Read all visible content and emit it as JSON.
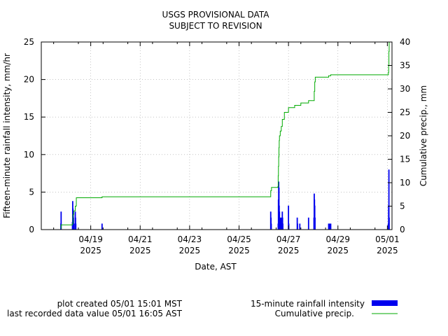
{
  "chart_data": {
    "type": "bar",
    "title": "USGS PROVISIONAL DATA",
    "subtitle": "SUBJECT TO REVISION",
    "xlabel": "Date, AST",
    "ylabel": "Fifteen-minute rainfall intensity, mm/hr",
    "y2label": "Cumulative precip., mm",
    "xlim": [
      "2025-04-17T12:00",
      "2025-05-01T16:30"
    ],
    "ylim": [
      0,
      25
    ],
    "y2lim": [
      0,
      40
    ],
    "yticks": [
      "0",
      "5",
      "10",
      "15",
      "20",
      "25"
    ],
    "y2ticks": [
      "0",
      "5",
      "10",
      "15",
      "20",
      "25",
      "30",
      "35",
      "40"
    ],
    "xticks": [
      {
        "date": "04/19",
        "year": "2025"
      },
      {
        "date": "04/21",
        "year": "2025"
      },
      {
        "date": "04/23",
        "year": "2025"
      },
      {
        "date": "04/25",
        "year": "2025"
      },
      {
        "date": "04/27",
        "year": "2025"
      },
      {
        "date": "04/29",
        "year": "2025"
      },
      {
        "date": "05/01",
        "year": "2025"
      }
    ],
    "grid": true,
    "legend_position": "bottom-right",
    "series": [
      {
        "name": "15-minute rainfall intensity",
        "color": "#0000ee",
        "style": "bars",
        "points": [
          [
            "2025-04-18T07:00",
            0.8
          ],
          [
            "2025-04-18T07:15",
            2.4
          ],
          [
            "2025-04-18T18:15",
            1.0
          ],
          [
            "2025-04-18T18:30",
            3.8
          ],
          [
            "2025-04-18T18:45",
            2.8
          ],
          [
            "2025-04-18T19:00",
            2.4
          ],
          [
            "2025-04-18T19:15",
            1.6
          ],
          [
            "2025-04-18T19:45",
            0.8
          ],
          [
            "2025-04-18T21:00",
            2.4
          ],
          [
            "2025-04-18T21:15",
            1.6
          ],
          [
            "2025-04-18T21:30",
            0.8
          ],
          [
            "2025-04-19T23:00",
            0.8
          ],
          [
            "2025-04-26T18:45",
            2.4
          ],
          [
            "2025-04-26T19:00",
            1.6
          ],
          [
            "2025-04-26T19:15",
            0.8
          ],
          [
            "2025-04-27T02:00",
            0.8
          ],
          [
            "2025-04-27T02:15",
            4.0
          ],
          [
            "2025-04-27T02:30",
            6.4
          ],
          [
            "2025-04-27T02:45",
            5.6
          ],
          [
            "2025-04-27T03:00",
            3.2
          ],
          [
            "2025-04-27T03:15",
            2.4
          ],
          [
            "2025-04-27T03:30",
            0.8
          ],
          [
            "2025-04-27T04:00",
            1.6
          ],
          [
            "2025-04-27T04:15",
            0.8
          ],
          [
            "2025-04-27T05:00",
            1.6
          ],
          [
            "2025-04-27T05:15",
            0.8
          ],
          [
            "2025-04-27T06:00",
            2.4
          ],
          [
            "2025-04-27T06:15",
            1.6
          ],
          [
            "2025-04-27T06:30",
            0.8
          ],
          [
            "2025-04-27T12:00",
            3.2
          ],
          [
            "2025-04-27T12:15",
            0.8
          ],
          [
            "2025-04-27T20:30",
            1.6
          ],
          [
            "2025-04-27T20:45",
            0.8
          ],
          [
            "2025-04-27T23:00",
            0.8
          ],
          [
            "2025-04-28T07:30",
            1.6
          ],
          [
            "2025-04-28T12:45",
            1.6
          ],
          [
            "2025-04-28T13:00",
            4.8
          ],
          [
            "2025-04-28T13:15",
            4.0
          ],
          [
            "2025-04-28T13:30",
            3.2
          ],
          [
            "2025-04-28T13:45",
            1.6
          ],
          [
            "2025-04-29T03:00",
            0.8
          ],
          [
            "2025-04-29T04:00",
            0.8
          ],
          [
            "2025-04-29T05:00",
            0.8
          ],
          [
            "2025-05-01T13:00",
            0.8
          ],
          [
            "2025-05-01T13:15",
            3.2
          ],
          [
            "2025-05-01T13:30",
            8.0
          ],
          [
            "2025-05-01T13:45",
            1.6
          ]
        ]
      },
      {
        "name": "Cumulative precip.",
        "color": "#00aa00",
        "style": "step-line",
        "points": [
          [
            "2025-04-18T07:00",
            0.2
          ],
          [
            "2025-04-18T07:15",
            1.0
          ],
          [
            "2025-04-18T18:15",
            1.3
          ],
          [
            "2025-04-18T18:45",
            3.2
          ],
          [
            "2025-04-18T19:30",
            4.0
          ],
          [
            "2025-04-18T21:00",
            5.0
          ],
          [
            "2025-04-18T22:00",
            6.8
          ],
          [
            "2025-04-19T23:00",
            7.0
          ],
          [
            "2025-04-26T18:45",
            8.3
          ],
          [
            "2025-04-26T19:30",
            9.0
          ],
          [
            "2025-04-27T01:45",
            9.2
          ],
          [
            "2025-04-27T02:00",
            11.5
          ],
          [
            "2025-04-27T02:15",
            13.5
          ],
          [
            "2025-04-27T02:30",
            15.5
          ],
          [
            "2025-04-27T02:45",
            17.5
          ],
          [
            "2025-04-27T03:00",
            19.0
          ],
          [
            "2025-04-27T03:15",
            20.0
          ],
          [
            "2025-04-27T04:00",
            21.0
          ],
          [
            "2025-04-27T05:00",
            22.0
          ],
          [
            "2025-04-27T06:00",
            23.5
          ],
          [
            "2025-04-27T08:00",
            25.0
          ],
          [
            "2025-04-27T12:00",
            26.0
          ],
          [
            "2025-04-27T18:00",
            26.5
          ],
          [
            "2025-04-28T00:00",
            27.0
          ],
          [
            "2025-04-28T07:30",
            27.5
          ],
          [
            "2025-04-28T13:00",
            29.5
          ],
          [
            "2025-04-28T13:30",
            31.5
          ],
          [
            "2025-04-28T14:00",
            32.5
          ],
          [
            "2025-04-29T03:00",
            32.8
          ],
          [
            "2025-04-29T05:00",
            33.0
          ],
          [
            "2025-05-01T13:00",
            33.5
          ],
          [
            "2025-05-01T13:15",
            35.0
          ],
          [
            "2025-05-01T13:30",
            38.0
          ],
          [
            "2025-05-01T13:45",
            40.0
          ],
          [
            "2025-05-01T16:05",
            40.0
          ]
        ]
      }
    ]
  },
  "footer": {
    "plot_created": "plot created 05/01 15:01 MST",
    "last_value": "last recorded data value 05/01 16:05 AST"
  }
}
